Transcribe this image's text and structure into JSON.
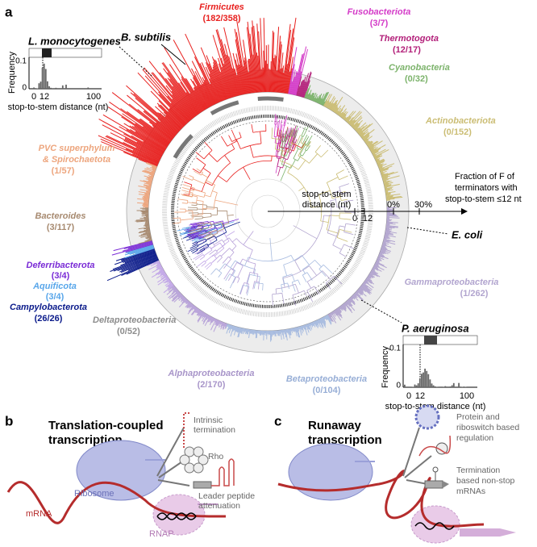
{
  "panel_a": {
    "label": "a",
    "clades": [
      {
        "name": "Firmicutes",
        "count": "(182/358)"
      },
      {
        "name": "Fusobacteriota",
        "count": "(3/7)"
      },
      {
        "name": "Thermotogota",
        "count": "(12/17)"
      },
      {
        "name": "Cyanobacteria",
        "count": "(0/32)"
      },
      {
        "name": "Actinobacteriota",
        "count": "(0/152)"
      },
      {
        "name": [
          "PVC superphylum",
          "& Spirochaetota"
        ],
        "count": "(1/57)"
      },
      {
        "name": "Bacteroides",
        "count": "(3/117)"
      },
      {
        "name": "Deferribacterota",
        "count": "(3/4)"
      },
      {
        "name": "Aquificota",
        "count": "(3/4)"
      },
      {
        "name": "Campylobacterota",
        "count": "(26/26)"
      },
      {
        "name": "Deltaproteobacteria",
        "count": "(0/52)"
      },
      {
        "name": "Alphaproteobacteria",
        "count": "(2/170)"
      },
      {
        "name": "Betaproteobacteria",
        "count": "(0/104)"
      },
      {
        "name": "Gammaproteobacteria",
        "count": "(1/262)"
      }
    ],
    "species": [
      "B. subtilis",
      "L. monocytogenes",
      "E. coli",
      "P. aeruginosa"
    ],
    "fraction_axis": {
      "title": [
        "Fraction of F of",
        "terminators with",
        "stop-to-stem ≤12 nt"
      ],
      "ticks": [
        "0%",
        "30%"
      ]
    },
    "distance_axis": {
      "title": [
        "stop-to-stem",
        "distance (nt)"
      ],
      "ticks": [
        "0",
        "12"
      ]
    },
    "inset_listeria": {
      "ylabel": "Frequency",
      "yticks": [
        "0.1",
        "0"
      ],
      "xticks": [
        "0",
        "12",
        "100"
      ],
      "xlabel": "stop-to-stem distance (nt)"
    },
    "inset_pseudomonas": {
      "ylabel": "Frequency",
      "yticks": [
        "0.1",
        "0"
      ],
      "xticks": [
        "0",
        "12",
        "100"
      ],
      "xlabel": "stop-to-stem distance (nt)"
    }
  },
  "panel_b": {
    "label": "b",
    "title": [
      "Translation-coupled",
      "transcription"
    ],
    "intrinsic": [
      "Intrinsic",
      "termination"
    ],
    "rho": "Rho",
    "leader": [
      "Leader peptide",
      "attenuation"
    ],
    "ribosome": "Ribosome",
    "mrna": "mRNA",
    "rnap": "RNAP"
  },
  "panel_c": {
    "label": "c",
    "title": [
      "Runaway",
      "transcription"
    ],
    "regulation": [
      "Protein and",
      "riboswitch based",
      "regulation"
    ],
    "nonstop": [
      "Termination",
      "based non-stop",
      "mRNAs"
    ]
  }
}
